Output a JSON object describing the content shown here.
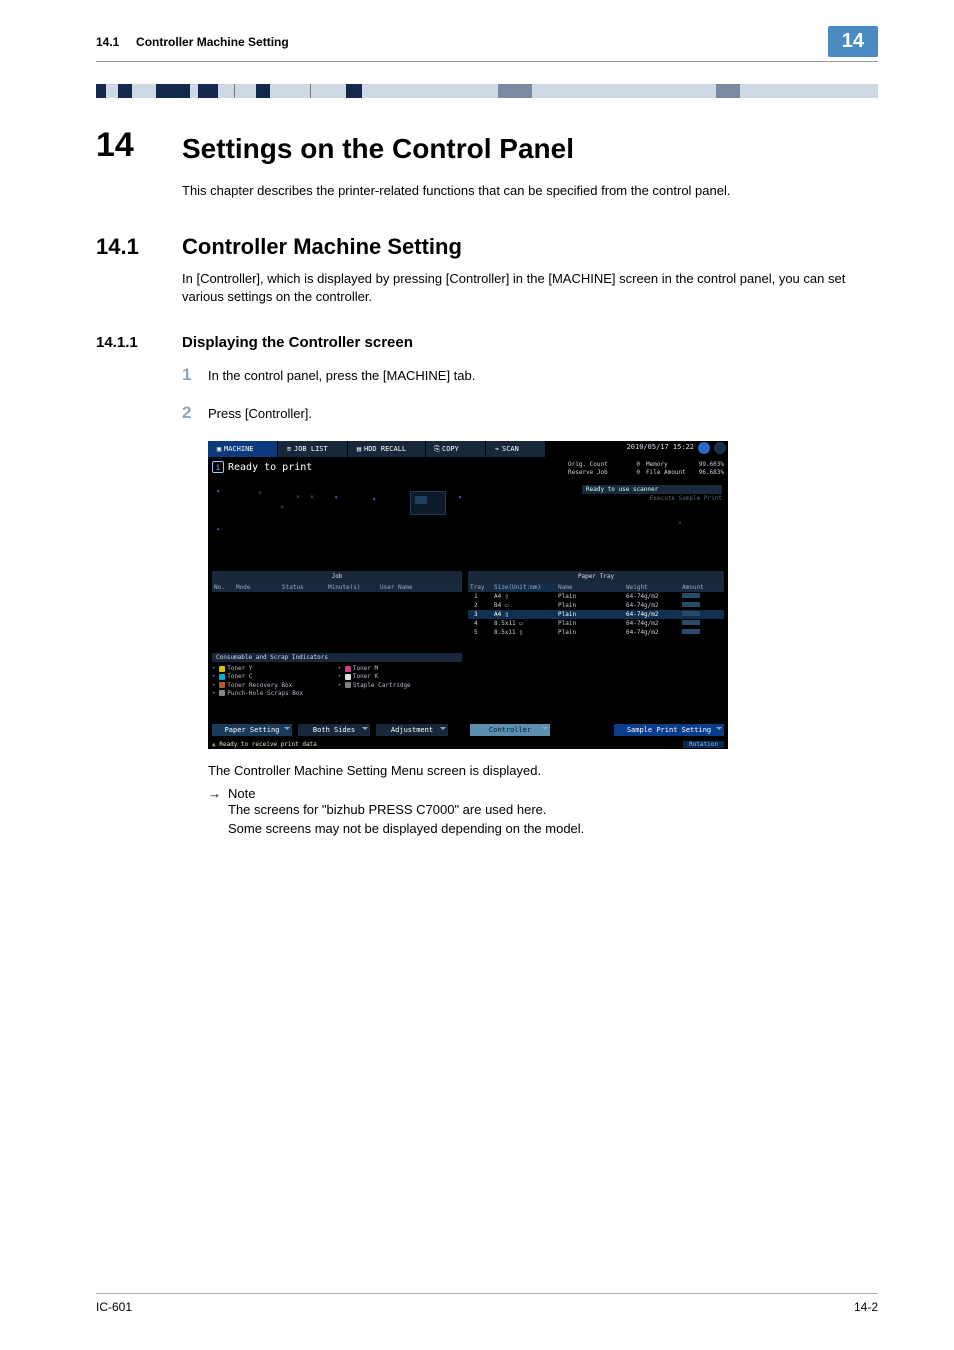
{
  "page": {
    "header_section": "14.1",
    "header_title": "Controller Machine Setting",
    "header_badge": "14",
    "footer_left": "IC-601",
    "footer_right": "14-2"
  },
  "chapter": {
    "num": "14",
    "title": "Settings on the Control Panel",
    "intro": "This chapter describes the printer-related functions that can be specified from the control panel."
  },
  "h2": {
    "num": "14.1",
    "title": "Controller Machine Setting",
    "body": "In [Controller], which is displayed by pressing [Controller] in the [MACHINE] screen in the control panel, you can set various settings on the controller."
  },
  "h3": {
    "num": "14.1.1",
    "title": "Displaying the Controller screen"
  },
  "steps": {
    "s1_num": "1",
    "s1_text": "In the control panel, press the [MACHINE] tab.",
    "s2_num": "2",
    "s2_text": "Press [Controller]."
  },
  "after": "The Controller Machine Setting Menu screen is displayed.",
  "note": {
    "arrow": "→",
    "label": "Note",
    "line1": "The screens for \"bizhub PRESS C7000\" are used here.",
    "line2": "Some screens may not be displayed depending on the model."
  },
  "shot": {
    "colors": {
      "tab_active": "#0c3a7a",
      "tab_inactive": "#18283a",
      "tab_text": "#ffffff",
      "hdr_bg": "#18283a",
      "sel_row": "#103050",
      "paper_btn": "#1a3a5a",
      "controller_btn": "#5a8fb0",
      "sample_btn": "#0a3e8a",
      "circ_blue": "#2a68c8",
      "circ_dark": "#1a3050"
    },
    "tabs": [
      {
        "label": "MACHINE",
        "active": true
      },
      {
        "label": "JOB LIST",
        "active": false
      },
      {
        "label": "HDD RECALL",
        "active": false
      },
      {
        "label": "COPY",
        "active": false
      },
      {
        "label": "SCAN",
        "active": false
      }
    ],
    "datetime": "2010/05/17 15:22",
    "ready": "Ready to print",
    "stats": {
      "orig_label": "Orig. Count",
      "orig_val": "0",
      "reserve_label": "Reserve Job",
      "reserve_val": "0",
      "mem_label": "Memory",
      "mem_val": "99.603%",
      "file_label": "File Amount",
      "file_val": "96.683%"
    },
    "scanner_hdr": "Ready to use scanner",
    "scanner_sub": "Execute Sample Print",
    "job": {
      "hdr": "Job",
      "cols": [
        "No.",
        "Mode",
        "Status",
        "Minute(s)",
        "User Name"
      ]
    },
    "paper": {
      "hdr": "Paper Tray",
      "cols": [
        "Tray",
        "Size(Unit:mm)",
        "Name",
        "Weight",
        "Amount"
      ],
      "rows": [
        {
          "tray": "1",
          "size": "A4 ▯",
          "name": "Plain",
          "weight": "64-74g/m2"
        },
        {
          "tray": "2",
          "size": "B4 ▭",
          "name": "Plain",
          "weight": "64-74g/m2"
        },
        {
          "tray": "3",
          "size": "A4 ▯",
          "name": "Plain",
          "weight": "64-74g/m2",
          "sel": true
        },
        {
          "tray": "4",
          "size": "8.5x11 ▭",
          "name": "Plain",
          "weight": "64-74g/m2"
        },
        {
          "tray": "5",
          "size": "8.5x11 ▯",
          "name": "Plain",
          "weight": "64-74g/m2"
        }
      ]
    },
    "consum": {
      "hdr": "Consumable and Scrap Indicators",
      "left": [
        {
          "label": "Toner Y",
          "color": "#d4c000"
        },
        {
          "label": "Toner C",
          "color": "#00b0d0"
        },
        {
          "label": "Toner Recovery Box",
          "color": "#b06030"
        },
        {
          "label": "Punch-Hole Scraps Box",
          "color": "#888888"
        }
      ],
      "right": [
        {
          "label": "Toner M",
          "color": "#d04080"
        },
        {
          "label": "Toner K",
          "color": "#e0e0e0"
        },
        {
          "label": "Staple Cartridge",
          "color": "#808080"
        }
      ]
    },
    "bottom": {
      "paper_setting": "Paper Setting",
      "both_sides": "Both Sides",
      "adjustment": "Adjustment",
      "controller": "Controller",
      "sample": "Sample Print Setting",
      "status": "Ready to receive print data",
      "rotation": "Rotation"
    }
  }
}
